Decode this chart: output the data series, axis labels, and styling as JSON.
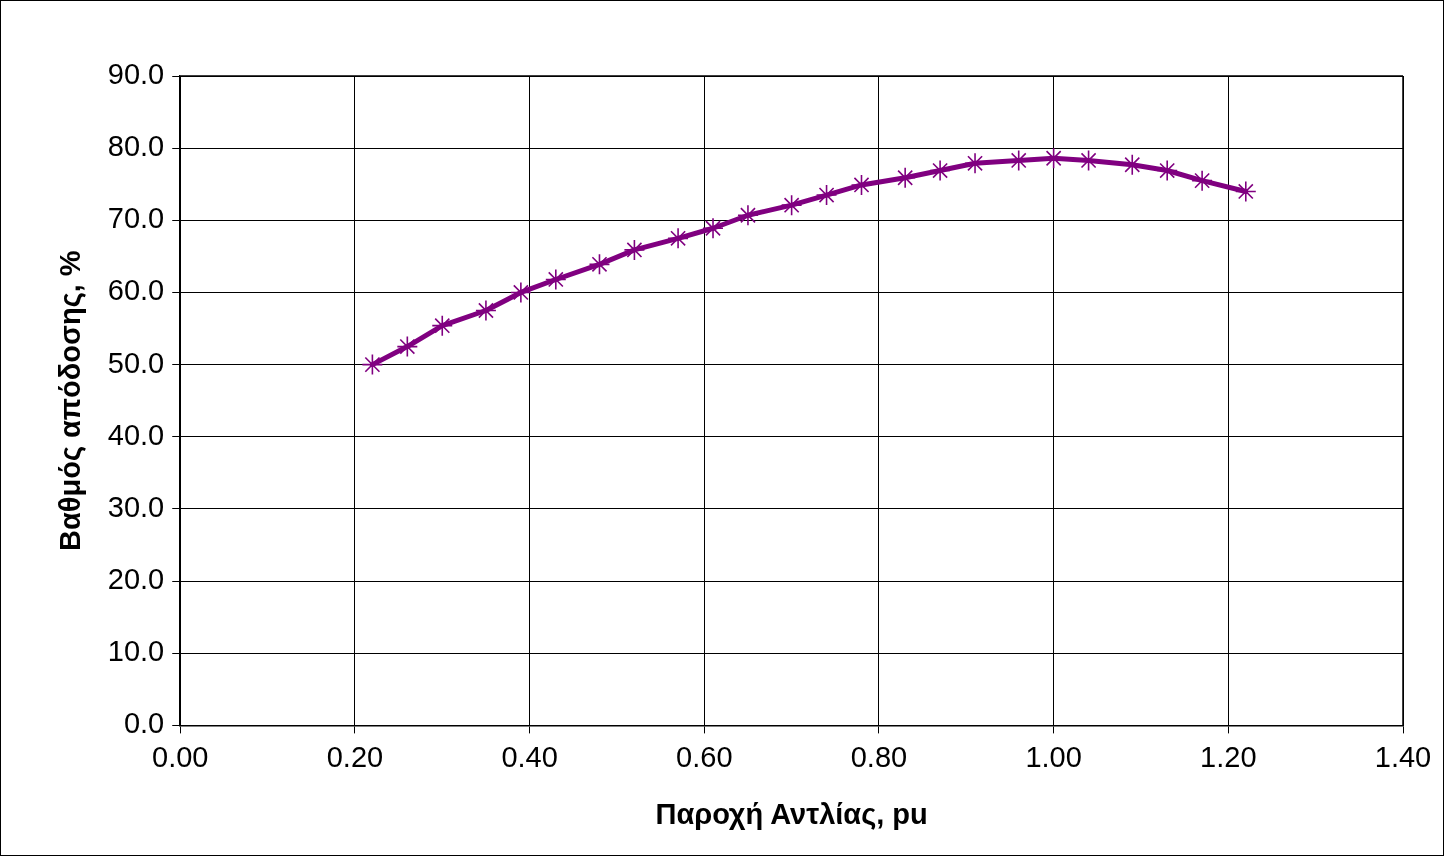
{
  "chart_data": {
    "type": "line",
    "xlabel": "Παροχή Αντλίας, pu",
    "ylabel": "Βαθμός απόδοσης, %",
    "x": [
      0.22,
      0.26,
      0.3,
      0.35,
      0.39,
      0.43,
      0.48,
      0.52,
      0.57,
      0.61,
      0.65,
      0.7,
      0.74,
      0.78,
      0.83,
      0.87,
      0.91,
      0.96,
      1.0,
      1.04,
      1.09,
      1.13,
      1.17,
      1.22
    ],
    "series": [
      {
        "color": "#800080",
        "values": [
          50.0,
          52.5,
          55.4,
          57.5,
          60.0,
          61.8,
          63.9,
          65.9,
          67.5,
          68.9,
          70.7,
          72.1,
          73.5,
          74.9,
          75.9,
          76.9,
          77.9,
          78.3,
          78.6,
          78.3,
          77.7,
          76.9,
          75.5,
          74.0
        ]
      }
    ],
    "xlim": [
      0,
      1.4
    ],
    "xticks": [
      {
        "value": 0,
        "label": "0.00"
      },
      {
        "value": 0.2,
        "label": "0.20"
      },
      {
        "value": 0.4,
        "label": "0.40"
      },
      {
        "value": 0.6,
        "label": "0.60"
      },
      {
        "value": 0.8,
        "label": "0.80"
      },
      {
        "value": 1.0,
        "label": "1.00"
      },
      {
        "value": 1.2,
        "label": "1.20"
      },
      {
        "value": 1.4,
        "label": "1.40"
      }
    ],
    "ylim": [
      0,
      90
    ],
    "yticks": [
      {
        "value": 0,
        "label": "0.0"
      },
      {
        "value": 10,
        "label": "10.0"
      },
      {
        "value": 20,
        "label": "20.0"
      },
      {
        "value": 30,
        "label": "30.0"
      },
      {
        "value": 40,
        "label": "40.0"
      },
      {
        "value": 50,
        "label": "50.0"
      },
      {
        "value": 60,
        "label": "60.0"
      },
      {
        "value": 70,
        "label": "70.0"
      },
      {
        "value": 80,
        "label": "80.0"
      },
      {
        "value": 90,
        "label": "90.0"
      }
    ],
    "grid": true,
    "legend": false,
    "marker": "cross",
    "line_style": "solid"
  }
}
